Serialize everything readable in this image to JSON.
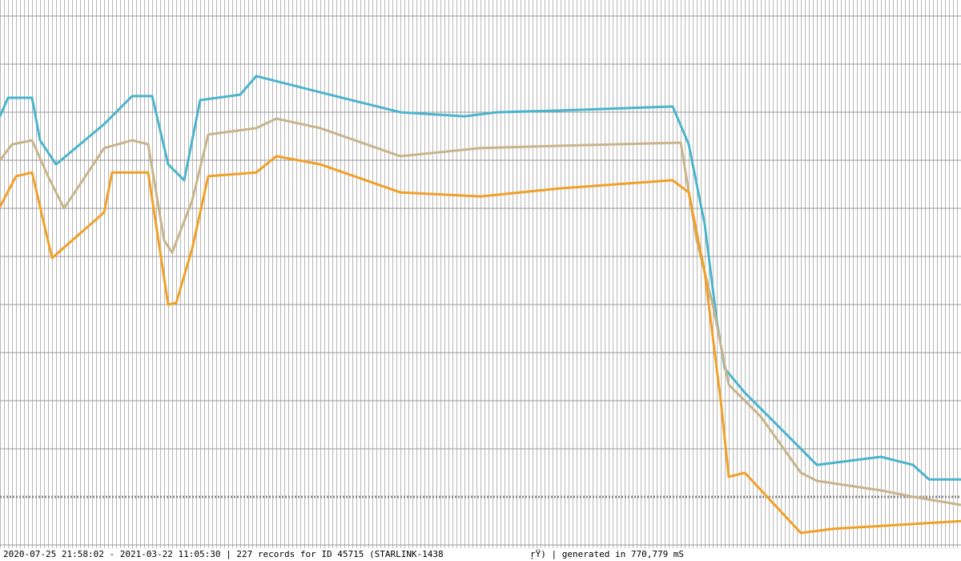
{
  "chart_data": {
    "type": "line",
    "xlim": [
      0,
      240
    ],
    "ylim": [
      220.4,
      414.3
    ],
    "series": [
      {
        "color": "#4ab4cc",
        "x": [
          0,
          2,
          8,
          10,
          14,
          26,
          33,
          38,
          42,
          46,
          50,
          60,
          64,
          80,
          100,
          116,
          124,
          140,
          168,
          172,
          176,
          179,
          181,
          186,
          200,
          204,
          220,
          228,
          232,
          240
        ],
        "values": [
          374.1,
          380.5,
          380.5,
          365.8,
          357.5,
          371.4,
          381.1,
          381.1,
          357.5,
          352.0,
          379.7,
          381.6,
          388.0,
          382.4,
          375.5,
          374.1,
          375.5,
          376.1,
          377.5,
          364.4,
          336.7,
          303.5,
          286.9,
          278.6,
          259.2,
          253.6,
          256.4,
          253.6,
          248.6,
          248.6
        ]
      },
      {
        "color": "#c8b48c",
        "x": [
          0,
          3,
          8,
          12,
          16,
          26,
          33,
          37,
          41,
          43,
          48,
          52,
          64,
          69,
          80,
          100,
          120,
          140,
          170,
          174,
          178,
          182,
          190,
          200,
          204,
          220,
          228,
          240
        ],
        "values": [
          358.9,
          364.4,
          365.8,
          353.4,
          342.3,
          363.1,
          365.8,
          364.4,
          331.2,
          327.0,
          345.0,
          367.8,
          370.0,
          373.3,
          370.0,
          360.3,
          363.1,
          363.9,
          365.0,
          331.2,
          309.0,
          281.3,
          270.3,
          250.9,
          248.1,
          244.8,
          242.6,
          239.8
        ]
      },
      {
        "color": "#f0a028",
        "x": [
          0,
          4,
          8,
          13,
          26,
          28,
          37,
          42,
          44,
          48,
          52,
          64,
          69,
          80,
          100,
          120,
          140,
          168,
          172,
          176,
          180,
          182,
          186,
          200,
          208,
          240
        ],
        "values": [
          342.8,
          353.4,
          354.7,
          325.1,
          340.9,
          354.7,
          354.7,
          309.0,
          309.6,
          328.4,
          353.4,
          354.7,
          360.3,
          357.5,
          347.8,
          346.4,
          349.2,
          352.0,
          347.8,
          320.1,
          275.8,
          249.5,
          250.9,
          230.1,
          231.5,
          234.2
        ]
      }
    ],
    "footer": "2020-07-25 21:58:02 - 2021-03-22 11:05:30 | 227 records for ID 45715 (STARLINK-1438",
    "footer_right": "ŗŸ) | generated in 770,779 mS"
  }
}
